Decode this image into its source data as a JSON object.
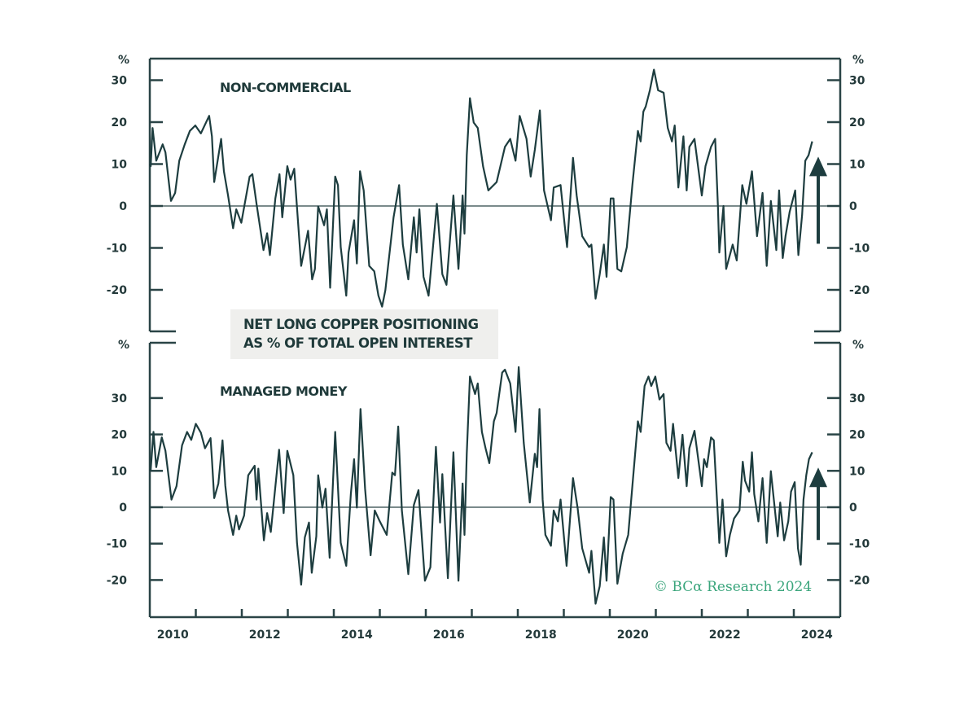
{
  "chart_data": [
    {
      "type": "line",
      "title": "NON-COMMERCIAL",
      "ylabel": "%",
      "ylim": [
        -30,
        35
      ],
      "yticks": [
        30,
        20,
        10,
        0,
        -10,
        -20
      ],
      "xlim": [
        2010,
        2025
      ],
      "xticks": [
        2010,
        2012,
        2014,
        2016,
        2018,
        2020,
        2022,
        2024
      ],
      "grid": false,
      "line_color": "#1d3d3f",
      "annotation": "up-arrow",
      "points": [
        [
          2010.0,
          10
        ],
        [
          2010.02,
          9.5
        ],
        [
          2010.06,
          18.6
        ],
        [
          2010.14,
          10.8
        ],
        [
          2010.28,
          14.7
        ],
        [
          2010.34,
          12.8
        ],
        [
          2010.46,
          1.2
        ],
        [
          2010.55,
          3.1
        ],
        [
          2010.64,
          10.8
        ],
        [
          2010.76,
          14.7
        ],
        [
          2010.87,
          17.9
        ],
        [
          2010.99,
          19.2
        ],
        [
          2011.11,
          17.3
        ],
        [
          2011.29,
          21.5
        ],
        [
          2011.35,
          16.6
        ],
        [
          2011.4,
          5.7
        ],
        [
          2011.55,
          16
        ],
        [
          2011.61,
          8.3
        ],
        [
          2011.7,
          2.5
        ],
        [
          2011.81,
          -5.3
        ],
        [
          2011.88,
          -0.8
        ],
        [
          2011.99,
          -4
        ],
        [
          2012.17,
          7
        ],
        [
          2012.23,
          7.6
        ],
        [
          2012.32,
          0.5
        ],
        [
          2012.47,
          -10.5
        ],
        [
          2012.55,
          -6.5
        ],
        [
          2012.61,
          -11.7
        ],
        [
          2012.73,
          1.8
        ],
        [
          2012.82,
          7.6
        ],
        [
          2012.88,
          -2.7
        ],
        [
          2012.99,
          9.5
        ],
        [
          2013.06,
          6.3
        ],
        [
          2013.14,
          8.9
        ],
        [
          2013.29,
          -14.3
        ],
        [
          2013.44,
          -5.9
        ],
        [
          2013.53,
          -17.5
        ],
        [
          2013.59,
          -15
        ],
        [
          2013.66,
          -0.1
        ],
        [
          2013.79,
          -4.6
        ],
        [
          2013.85,
          -0.8
        ],
        [
          2013.92,
          -19.5
        ],
        [
          2014.03,
          7
        ],
        [
          2014.09,
          5
        ],
        [
          2014.15,
          -9.8
        ],
        [
          2014.27,
          -21.4
        ],
        [
          2014.32,
          -11.1
        ],
        [
          2014.44,
          -3.4
        ],
        [
          2014.5,
          -13.7
        ],
        [
          2014.57,
          8.3
        ],
        [
          2014.65,
          3.7
        ],
        [
          2014.77,
          -14.3
        ],
        [
          2014.88,
          -15.6
        ],
        [
          2014.97,
          -21.4
        ],
        [
          2015.05,
          -24
        ],
        [
          2015.12,
          -20.1
        ],
        [
          2015.3,
          -2.7
        ],
        [
          2015.42,
          5
        ],
        [
          2015.5,
          -9.2
        ],
        [
          2015.62,
          -17.5
        ],
        [
          2015.74,
          -2.7
        ],
        [
          2015.8,
          -11.1
        ],
        [
          2015.86,
          -0.8
        ],
        [
          2015.95,
          -16.9
        ],
        [
          2016.06,
          -21.4
        ],
        [
          2016.24,
          0.5
        ],
        [
          2016.36,
          -16.3
        ],
        [
          2016.45,
          -18.8
        ],
        [
          2016.6,
          2.5
        ],
        [
          2016.71,
          -15
        ],
        [
          2016.8,
          2.5
        ],
        [
          2016.84,
          -6.6
        ],
        [
          2016.89,
          12.1
        ],
        [
          2016.96,
          25.7
        ],
        [
          2017.04,
          19.9
        ],
        [
          2017.13,
          18.6
        ],
        [
          2017.245,
          9.5
        ],
        [
          2017.36,
          3.7
        ],
        [
          2017.54,
          5.7
        ],
        [
          2017.72,
          14.1
        ],
        [
          2017.835,
          16
        ],
        [
          2017.95,
          10.8
        ],
        [
          2018.04,
          21.5
        ],
        [
          2018.19,
          16
        ],
        [
          2018.28,
          7
        ],
        [
          2018.37,
          13.4
        ],
        [
          2018.48,
          22.8
        ],
        [
          2018.57,
          3.7
        ],
        [
          2018.72,
          -3.4
        ],
        [
          2018.78,
          4.4
        ],
        [
          2018.93,
          5
        ],
        [
          2019.02,
          -4.6
        ],
        [
          2019.07,
          -9.8
        ],
        [
          2019.2,
          11.5
        ],
        [
          2019.28,
          2.5
        ],
        [
          2019.4,
          -7.2
        ],
        [
          2019.55,
          -9.8
        ],
        [
          2019.6,
          -9.2
        ],
        [
          2019.69,
          -22.1
        ],
        [
          2019.78,
          -16.3
        ],
        [
          2019.87,
          -9.2
        ],
        [
          2019.93,
          -16.9
        ],
        [
          2020.02,
          1.8
        ],
        [
          2020.08,
          1.8
        ],
        [
          2020.165,
          -15
        ],
        [
          2020.25,
          -15.6
        ],
        [
          2020.37,
          -9.8
        ],
        [
          2020.49,
          5
        ],
        [
          2020.61,
          17.9
        ],
        [
          2020.67,
          15.4
        ],
        [
          2020.73,
          22.5
        ],
        [
          2020.78,
          23.7
        ],
        [
          2020.87,
          27.6
        ],
        [
          2020.96,
          32.5
        ],
        [
          2021.05,
          27.6
        ],
        [
          2021.17,
          27
        ],
        [
          2021.26,
          18.6
        ],
        [
          2021.35,
          15.4
        ],
        [
          2021.41,
          19.2
        ],
        [
          2021.49,
          4.4
        ],
        [
          2021.6,
          16.6
        ],
        [
          2021.67,
          3.7
        ],
        [
          2021.73,
          14.1
        ],
        [
          2021.84,
          16
        ],
        [
          2022.0,
          2.5
        ],
        [
          2022.08,
          9.5
        ],
        [
          2022.2,
          14.1
        ],
        [
          2022.29,
          16
        ],
        [
          2022.35,
          -0.1
        ],
        [
          2022.38,
          -11.1
        ],
        [
          2022.47,
          0
        ],
        [
          2022.53,
          -15
        ],
        [
          2022.67,
          -9.2
        ],
        [
          2022.76,
          -13
        ],
        [
          2022.88,
          5
        ],
        [
          2022.97,
          0.5
        ],
        [
          2023.09,
          8.3
        ],
        [
          2023.2,
          -7.2
        ],
        [
          2023.32,
          3.1
        ],
        [
          2023.41,
          -14.3
        ],
        [
          2023.5,
          1.2
        ],
        [
          2023.62,
          -10.5
        ],
        [
          2023.68,
          3.7
        ],
        [
          2023.76,
          -12.4
        ],
        [
          2023.82,
          -7.2
        ],
        [
          2023.91,
          -1.4
        ],
        [
          2024.03,
          3.7
        ],
        [
          2024.1,
          -11.7
        ],
        [
          2024.18,
          -2.1
        ],
        [
          2024.25,
          10.8
        ],
        [
          2024.32,
          12.1
        ],
        [
          2024.4,
          15.4
        ]
      ]
    },
    {
      "type": "line",
      "title": "MANAGED MONEY",
      "ylabel": "%",
      "ylim": [
        -30,
        45
      ],
      "yticks": [
        30,
        20,
        10,
        0,
        -10,
        -20
      ],
      "xlim": [
        2010,
        2025
      ],
      "xticks": [
        2010,
        2012,
        2014,
        2016,
        2018,
        2020,
        2022,
        2024
      ],
      "grid": false,
      "line_color": "#1d3d3f",
      "annotation": "up-arrow",
      "points": [
        [
          2010.0,
          10
        ],
        [
          2010.02,
          10.3
        ],
        [
          2010.08,
          20.7
        ],
        [
          2010.14,
          11
        ],
        [
          2010.26,
          19.2
        ],
        [
          2010.34,
          15.5
        ],
        [
          2010.47,
          2.1
        ],
        [
          2010.58,
          5.8
        ],
        [
          2010.7,
          17
        ],
        [
          2010.81,
          20.7
        ],
        [
          2010.9,
          18.5
        ],
        [
          2011.0,
          22.9
        ],
        [
          2011.11,
          20.5
        ],
        [
          2011.2,
          16.2
        ],
        [
          2011.32,
          19
        ],
        [
          2011.35,
          13.2
        ],
        [
          2011.4,
          2.5
        ],
        [
          2011.49,
          6.5
        ],
        [
          2011.58,
          18.4
        ],
        [
          2011.64,
          6
        ],
        [
          2011.7,
          -0.9
        ],
        [
          2011.81,
          -7.6
        ],
        [
          2011.88,
          -2.3
        ],
        [
          2011.94,
          -6.1
        ],
        [
          2012.05,
          -2.3
        ],
        [
          2012.14,
          8.8
        ],
        [
          2012.28,
          11.4
        ],
        [
          2012.32,
          2.1
        ],
        [
          2012.36,
          10.6
        ],
        [
          2012.48,
          -9.1
        ],
        [
          2012.55,
          -1.6
        ],
        [
          2012.63,
          -6.8
        ],
        [
          2012.7,
          2.1
        ],
        [
          2012.81,
          15.8
        ],
        [
          2012.91,
          -1.6
        ],
        [
          2012.99,
          15.5
        ],
        [
          2013.12,
          8.8
        ],
        [
          2013.2,
          -9.8
        ],
        [
          2013.29,
          -21.3
        ],
        [
          2013.37,
          -8.3
        ],
        [
          2013.46,
          -4.2
        ],
        [
          2013.52,
          -18
        ],
        [
          2013.62,
          -8
        ],
        [
          2013.66,
          8.8
        ],
        [
          2013.75,
          -0.1
        ],
        [
          2013.82,
          5.1
        ],
        [
          2013.91,
          -13.9
        ],
        [
          2014.03,
          20.7
        ],
        [
          2014.15,
          -9.8
        ],
        [
          2014.27,
          -16.1
        ],
        [
          2014.37,
          3.6
        ],
        [
          2014.44,
          13.2
        ],
        [
          2014.5,
          -0.1
        ],
        [
          2014.58,
          27
        ],
        [
          2014.68,
          5.1
        ],
        [
          2014.8,
          -13.2
        ],
        [
          2014.89,
          -0.9
        ],
        [
          2015.0,
          -3.9
        ],
        [
          2015.15,
          -7.6
        ],
        [
          2015.27,
          9.5
        ],
        [
          2015.33,
          8.8
        ],
        [
          2015.4,
          22.2
        ],
        [
          2015.48,
          -0.9
        ],
        [
          2015.62,
          -18.4
        ],
        [
          2015.74,
          0.6
        ],
        [
          2015.84,
          4.7
        ],
        [
          2015.98,
          -20.2
        ],
        [
          2016.1,
          -16.5
        ],
        [
          2016.22,
          16.6
        ],
        [
          2016.31,
          -4.2
        ],
        [
          2016.36,
          9.1
        ],
        [
          2016.48,
          -19.5
        ],
        [
          2016.6,
          15.1
        ],
        [
          2016.71,
          -20.2
        ],
        [
          2016.8,
          6.5
        ],
        [
          2016.84,
          -7.6
        ],
        [
          2016.89,
          14.7
        ],
        [
          2016.96,
          35.9
        ],
        [
          2017.07,
          31.1
        ],
        [
          2017.13,
          34
        ],
        [
          2017.22,
          20.7
        ],
        [
          2017.3,
          16.2
        ],
        [
          2017.38,
          12.1
        ],
        [
          2017.48,
          23.6
        ],
        [
          2017.54,
          25.9
        ],
        [
          2017.66,
          37
        ],
        [
          2017.72,
          37.8
        ],
        [
          2017.835,
          34
        ],
        [
          2017.95,
          20.7
        ],
        [
          2018.02,
          38.5
        ],
        [
          2018.13,
          17.7
        ],
        [
          2018.26,
          1.3
        ],
        [
          2018.37,
          14.7
        ],
        [
          2018.42,
          11
        ],
        [
          2018.47,
          27
        ],
        [
          2018.54,
          2.1
        ],
        [
          2018.6,
          -7.6
        ],
        [
          2018.72,
          -10.6
        ],
        [
          2018.78,
          -0.9
        ],
        [
          2018.87,
          -3.9
        ],
        [
          2018.93,
          2.1
        ],
        [
          2019.06,
          -16.1
        ],
        [
          2019.2,
          8
        ],
        [
          2019.3,
          -0.1
        ],
        [
          2019.4,
          -11.3
        ],
        [
          2019.55,
          -18
        ],
        [
          2019.6,
          -12
        ],
        [
          2019.69,
          -26.5
        ],
        [
          2019.78,
          -21.7
        ],
        [
          2019.87,
          -8.3
        ],
        [
          2019.93,
          -20.2
        ],
        [
          2020.02,
          2.8
        ],
        [
          2020.08,
          2.1
        ],
        [
          2020.165,
          -21
        ],
        [
          2020.28,
          -12.8
        ],
        [
          2020.4,
          -7.6
        ],
        [
          2020.49,
          5.8
        ],
        [
          2020.61,
          23.6
        ],
        [
          2020.67,
          20.7
        ],
        [
          2020.755,
          33.3
        ],
        [
          2020.84,
          35.9
        ],
        [
          2020.9,
          33.3
        ],
        [
          2020.99,
          35.9
        ],
        [
          2021.08,
          29.6
        ],
        [
          2021.17,
          31.1
        ],
        [
          2021.23,
          17.7
        ],
        [
          2021.32,
          15.5
        ],
        [
          2021.375,
          22.9
        ],
        [
          2021.49,
          8
        ],
        [
          2021.58,
          19.9
        ],
        [
          2021.67,
          5.8
        ],
        [
          2021.73,
          16.2
        ],
        [
          2021.84,
          21
        ],
        [
          2022.0,
          5.8
        ],
        [
          2022.05,
          13.2
        ],
        [
          2022.11,
          11
        ],
        [
          2022.2,
          19.2
        ],
        [
          2022.26,
          18.4
        ],
        [
          2022.38,
          -9.8
        ],
        [
          2022.45,
          2.1
        ],
        [
          2022.53,
          -13.5
        ],
        [
          2022.61,
          -7.6
        ],
        [
          2022.7,
          -3.1
        ],
        [
          2022.82,
          -0.9
        ],
        [
          2022.89,
          12.5
        ],
        [
          2022.94,
          7.3
        ],
        [
          2023.03,
          4.3
        ],
        [
          2023.09,
          15.1
        ],
        [
          2023.14,
          3.6
        ],
        [
          2023.23,
          -3.9
        ],
        [
          2023.32,
          8
        ],
        [
          2023.41,
          -9.8
        ],
        [
          2023.5,
          9.9
        ],
        [
          2023.65,
          -8
        ],
        [
          2023.705,
          1.3
        ],
        [
          2023.79,
          -9.1
        ],
        [
          2023.88,
          -3.9
        ],
        [
          2023.94,
          4.3
        ],
        [
          2024.02,
          6.9
        ],
        [
          2024.09,
          -11.3
        ],
        [
          2024.15,
          -15.8
        ],
        [
          2024.21,
          2.1
        ],
        [
          2024.27,
          8.8
        ],
        [
          2024.33,
          13.2
        ],
        [
          2024.4,
          15.1
        ]
      ]
    }
  ],
  "note": {
    "line1": "NET LONG COPPER POSITIONING",
    "line2": "AS % OF TOTAL OPEN INTEREST"
  },
  "watermark": "© BCα Research 2024",
  "colors": {
    "line": "#1d3d3f",
    "axis": "#2a4446",
    "watermark": "#3aa57c",
    "note_bg": "#efefed"
  }
}
